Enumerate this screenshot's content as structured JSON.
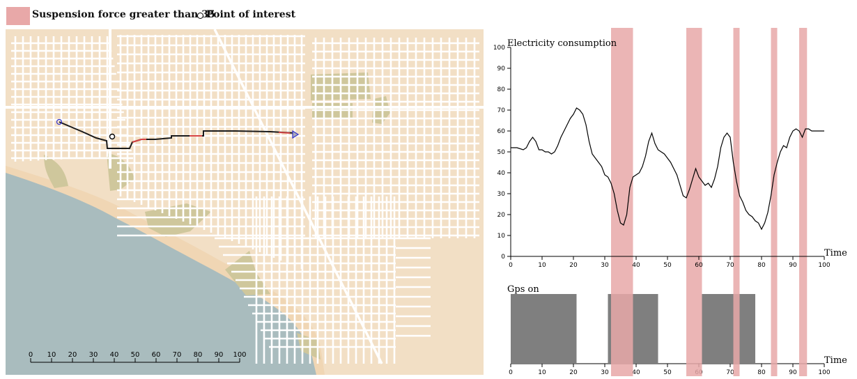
{
  "legend": {
    "highlight_label": "Suspension force greater than 35",
    "poi_label": "Point of interest",
    "highlight_color": "#e8a8a8"
  },
  "map": {
    "scale_ticks": [
      "0",
      "10",
      "20",
      "30",
      "40",
      "50",
      "60",
      "70",
      "80",
      "90",
      "100"
    ],
    "colors": {
      "land": "#f2dfc5",
      "water": "#a9bcbe",
      "beach": "#f0d6b4",
      "park": "#cfc79c",
      "roads": "#ffffff",
      "track": "#1a1a1a",
      "track_highlight": "#d64545",
      "end_marker": "#3333cc"
    }
  },
  "chart_data": [
    {
      "type": "line",
      "title": "Electricity consumption",
      "xlabel": "Time",
      "ylabel": "",
      "xlim": [
        0,
        100
      ],
      "ylim": [
        0,
        100
      ],
      "x_ticks": [
        "0",
        "10",
        "20",
        "30",
        "40",
        "50",
        "60",
        "70",
        "80",
        "90",
        "100"
      ],
      "y_ticks": [
        "0",
        "10",
        "20",
        "30",
        "40",
        "50",
        "60",
        "70",
        "80",
        "90",
        "100"
      ],
      "line_color": "#000000",
      "x": [
        0,
        2,
        4,
        5,
        6,
        7,
        8,
        9,
        10,
        11,
        12,
        13,
        14,
        15,
        16,
        17,
        18,
        19,
        20,
        21,
        22,
        23,
        24,
        25,
        26,
        27,
        28,
        29,
        30,
        31,
        32,
        33,
        34,
        35,
        36,
        37,
        38,
        39,
        40,
        41,
        42,
        43,
        44,
        45,
        46,
        47,
        48,
        49,
        50,
        51,
        52,
        53,
        54,
        55,
        56,
        57,
        58,
        59,
        60,
        61,
        62,
        63,
        64,
        65,
        66,
        67,
        68,
        69,
        70,
        71,
        72,
        73,
        74,
        75,
        76,
        77,
        78,
        79,
        80,
        81,
        82,
        83,
        84,
        85,
        86,
        87,
        88,
        89,
        90,
        91,
        92,
        93,
        94,
        95,
        96,
        97,
        98,
        100
      ],
      "y": [
        52,
        52,
        51,
        52,
        55,
        57,
        55,
        51,
        51,
        50,
        50,
        49,
        50,
        53,
        57,
        60,
        63,
        66,
        68,
        71,
        70,
        68,
        63,
        55,
        49,
        47,
        45,
        43,
        39,
        38,
        35,
        30,
        22,
        16,
        15,
        20,
        33,
        38,
        39,
        40,
        43,
        48,
        55,
        59,
        54,
        51,
        50,
        49,
        47,
        45,
        42,
        39,
        34,
        29,
        28,
        32,
        37,
        42,
        38,
        36,
        34,
        35,
        33,
        37,
        43,
        52,
        57,
        59,
        57,
        45,
        36,
        29,
        26,
        22,
        20,
        19,
        17,
        16,
        13,
        16,
        21,
        29,
        39,
        45,
        50,
        53,
        52,
        57,
        60,
        61,
        60,
        57,
        61,
        61,
        60,
        60,
        60,
        60
      ]
    },
    {
      "type": "bar",
      "title": "Gps on",
      "xlabel": "Time",
      "xlim": [
        0,
        100
      ],
      "x_ticks": [
        "0",
        "10",
        "20",
        "30",
        "40",
        "50",
        "60",
        "70",
        "80",
        "90",
        "100"
      ],
      "bar_color": "#7f7f7f",
      "intervals": [
        [
          0,
          21
        ],
        [
          31,
          47
        ],
        [
          61,
          78
        ]
      ]
    }
  ],
  "highlight_intervals": [
    [
      32,
      39
    ],
    [
      56,
      61
    ],
    [
      71,
      73
    ],
    [
      83,
      85
    ],
    [
      92,
      94.5
    ]
  ]
}
